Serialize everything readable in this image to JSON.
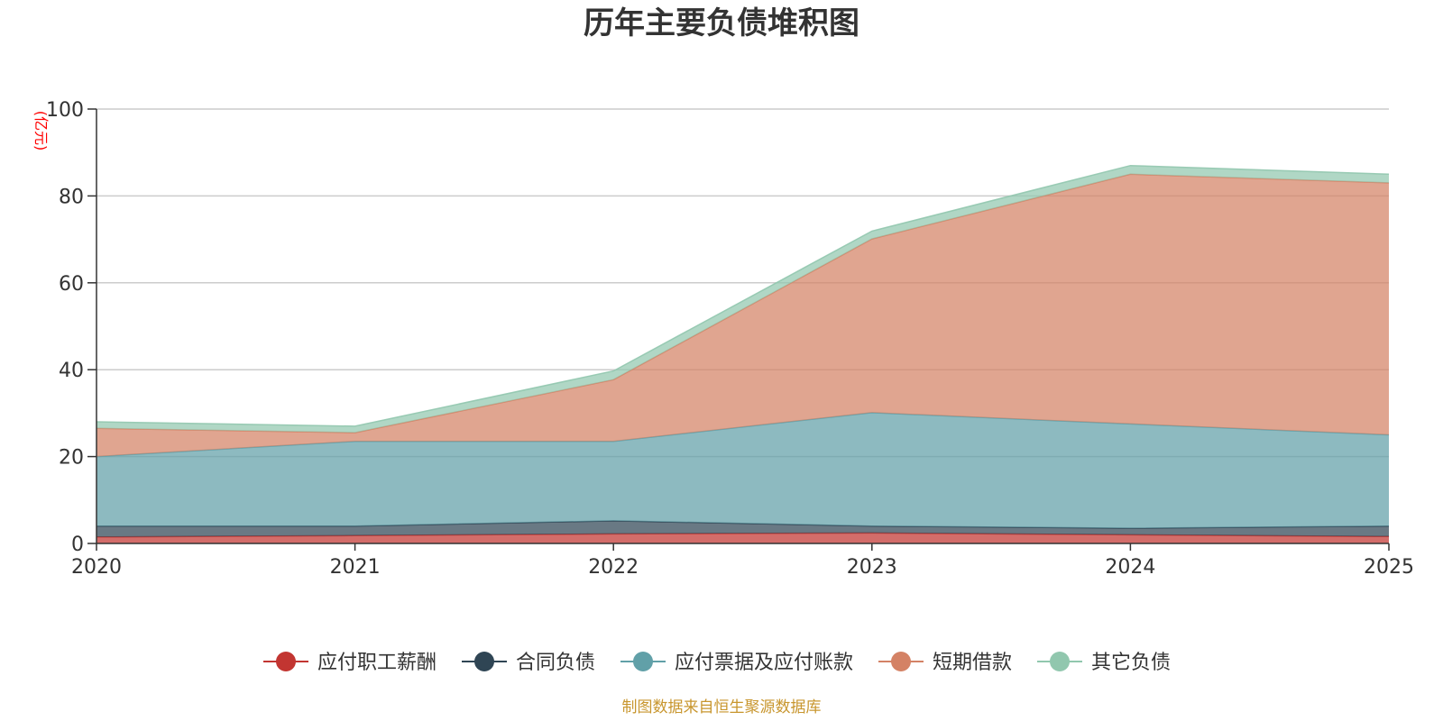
{
  "chart_data": {
    "type": "area",
    "stacked": true,
    "title": "历年主要负债堆积图",
    "ylabel": "(亿元)",
    "xlabel": "",
    "x": [
      "2020",
      "2021",
      "2022",
      "2023",
      "2024",
      "2025"
    ],
    "ylim": [
      0,
      100
    ],
    "yticks": [
      "0",
      "20",
      "40",
      "60",
      "80",
      "100"
    ],
    "grid": true,
    "legend_position": "bottom",
    "series": [
      {
        "name": "应付职工薪酬",
        "color": "#c23531",
        "values": [
          1.5,
          1.8,
          2.2,
          2.4,
          2.0,
          1.6
        ]
      },
      {
        "name": "合同负债",
        "color": "#2f4554",
        "values": [
          2.5,
          2.2,
          3.0,
          1.6,
          1.5,
          2.4
        ]
      },
      {
        "name": "应付票据及应付账款",
        "color": "#61a0a8",
        "values": [
          16.0,
          19.5,
          18.3,
          26.1,
          24.0,
          21.0
        ]
      },
      {
        "name": "短期借款",
        "color": "#d48265",
        "values": [
          6.5,
          2.0,
          14.2,
          40.0,
          57.5,
          58.0
        ]
      },
      {
        "name": "其它负债",
        "color": "#91c7ae",
        "values": [
          1.5,
          1.5,
          2.0,
          1.8,
          2.0,
          2.0
        ]
      }
    ],
    "source": "制图数据来自恒生聚源数据库"
  }
}
